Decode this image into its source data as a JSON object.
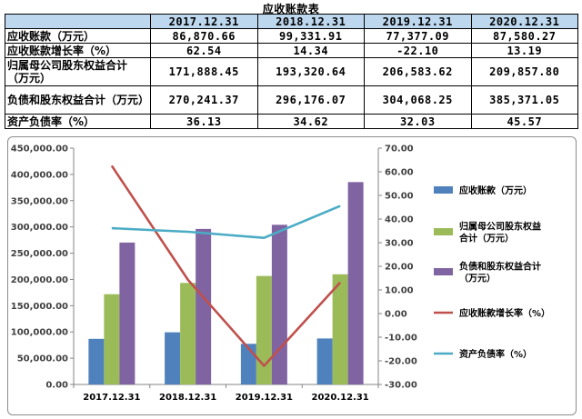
{
  "table": {
    "title": "应收账款表",
    "columns": [
      "",
      "2017.12.31",
      "2018.12.31",
      "2019.12.31",
      "2020.12.31"
    ],
    "rows": [
      {
        "label": "应收账款（万元）",
        "values": [
          "86,870.66",
          "99,331.91",
          "77,377.09",
          "87,580.27"
        ],
        "tall": false
      },
      {
        "label": "应收账款增长率（%）",
        "values": [
          "62.54",
          "14.34",
          "-22.10",
          "13.19"
        ],
        "tall": false
      },
      {
        "label": "归属母公司股东权益合计（万元）",
        "values": [
          "171,888.45",
          "193,320.64",
          "206,583.62",
          "209,857.80"
        ],
        "tall": true
      },
      {
        "label": "负债和股东权益合计（万元）",
        "values": [
          "270,241.37",
          "296,176.07",
          "304,068.25",
          "385,371.05"
        ],
        "tall": true
      },
      {
        "label": "资产负债率（%）",
        "values": [
          "36.13",
          "34.62",
          "32.03",
          "45.57"
        ],
        "tall": false
      }
    ]
  },
  "chart_data": {
    "type": "bar",
    "categories": [
      "2017.12.31",
      "2018.12.31",
      "2019.12.31",
      "2020.12.31"
    ],
    "left_axis": {
      "ylim": [
        0,
        450000
      ],
      "ticks": [
        "0.00",
        "50,000.00",
        "100,000.00",
        "150,000.00",
        "200,000.00",
        "250,000.00",
        "300,000.00",
        "350,000.00",
        "400,000.00",
        "450,000.00"
      ]
    },
    "right_axis": {
      "ylim": [
        -30,
        70
      ],
      "ticks": [
        "-30.00",
        "-20.00",
        "-10.00",
        "0.00",
        "10.00",
        "20.00",
        "30.00",
        "40.00",
        "50.00",
        "60.00",
        "70.00"
      ]
    },
    "series": [
      {
        "name": "应收账款（万元）",
        "kind": "bar",
        "axis": "left",
        "color": "#4f81bd",
        "values": [
          86870.66,
          99331.91,
          77377.09,
          87580.27
        ]
      },
      {
        "name": "归属母公司股东权益合计（万元）",
        "legend_lines": [
          "归属母公司股东权益",
          "合计（万元）"
        ],
        "kind": "bar",
        "axis": "left",
        "color": "#9bbb59",
        "values": [
          171888.45,
          193320.64,
          206583.62,
          209857.8
        ]
      },
      {
        "name": "负债和股东权益合计（万元）",
        "legend_lines": [
          "负债和股东权益合计",
          "（万元）"
        ],
        "kind": "bar",
        "axis": "left",
        "color": "#8064a2",
        "values": [
          270241.37,
          296176.07,
          304068.25,
          385371.05
        ]
      },
      {
        "name": "应收账款增长率（%）",
        "kind": "line",
        "axis": "right",
        "color": "#c0504d",
        "values": [
          62.54,
          14.34,
          -22.1,
          13.19
        ]
      },
      {
        "name": "资产负债率（%）",
        "kind": "line",
        "axis": "right",
        "color": "#4bacc6",
        "values": [
          36.13,
          34.62,
          32.03,
          45.57
        ]
      }
    ],
    "grid": false,
    "legend_position": "right"
  }
}
